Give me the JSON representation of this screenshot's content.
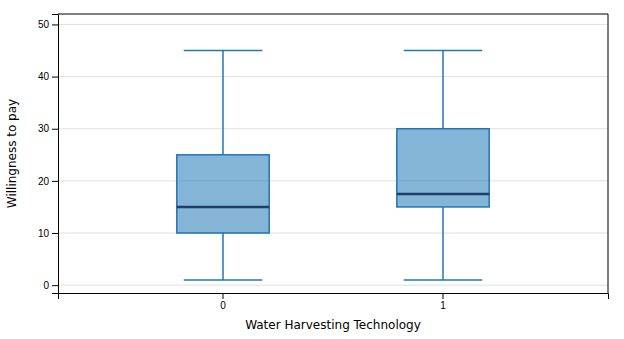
{
  "chart_data": {
    "type": "box",
    "xlabel": "Water Harvesting Technology",
    "ylabel": "Willingness to pay",
    "categories": [
      "0",
      "1"
    ],
    "whisker_low": [
      1,
      1
    ],
    "q1": [
      10,
      15
    ],
    "median": [
      15,
      17.5
    ],
    "q3": [
      25,
      30
    ],
    "whisker_high": [
      45,
      45
    ],
    "ylim": [
      -1.5,
      52
    ],
    "yticks": [
      0,
      10,
      20,
      30,
      40,
      50
    ],
    "grid": true
  }
}
